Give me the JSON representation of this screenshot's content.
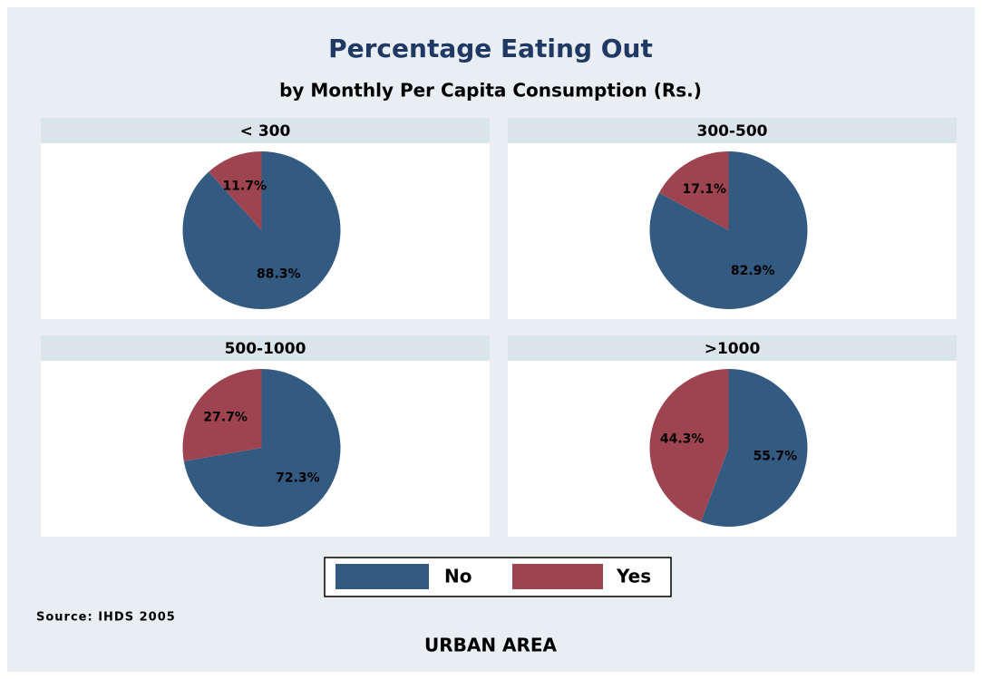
{
  "title": "Percentage Eating Out",
  "subtitle": "by Monthly Per Capita Consumption (Rs.)",
  "source": "Source: IHDS 2005",
  "note": "URBAN AREA",
  "chart_data": [
    {
      "type": "pie",
      "title": "< 300",
      "categories": [
        "No",
        "Yes"
      ],
      "values": [
        88.3,
        11.7
      ],
      "value_labels": [
        "88.3%",
        "11.7%"
      ],
      "colors": [
        "#335a80",
        "#9e4450"
      ]
    },
    {
      "type": "pie",
      "title": "300-500",
      "categories": [
        "No",
        "Yes"
      ],
      "values": [
        82.9,
        17.1
      ],
      "value_labels": [
        "82.9%",
        "17.1%"
      ],
      "colors": [
        "#335a80",
        "#9e4450"
      ]
    },
    {
      "type": "pie",
      "title": "500-1000",
      "categories": [
        "No",
        "Yes"
      ],
      "values": [
        72.3,
        27.7
      ],
      "value_labels": [
        "72.3%",
        "27.7%"
      ],
      "colors": [
        "#335a80",
        "#9e4450"
      ]
    },
    {
      "type": "pie",
      "title": ">1000",
      "categories": [
        "No",
        "Yes"
      ],
      "values": [
        55.7,
        44.3
      ],
      "value_labels": [
        "55.7%",
        "44.3%"
      ],
      "colors": [
        "#335a80",
        "#9e4450"
      ]
    }
  ]
}
